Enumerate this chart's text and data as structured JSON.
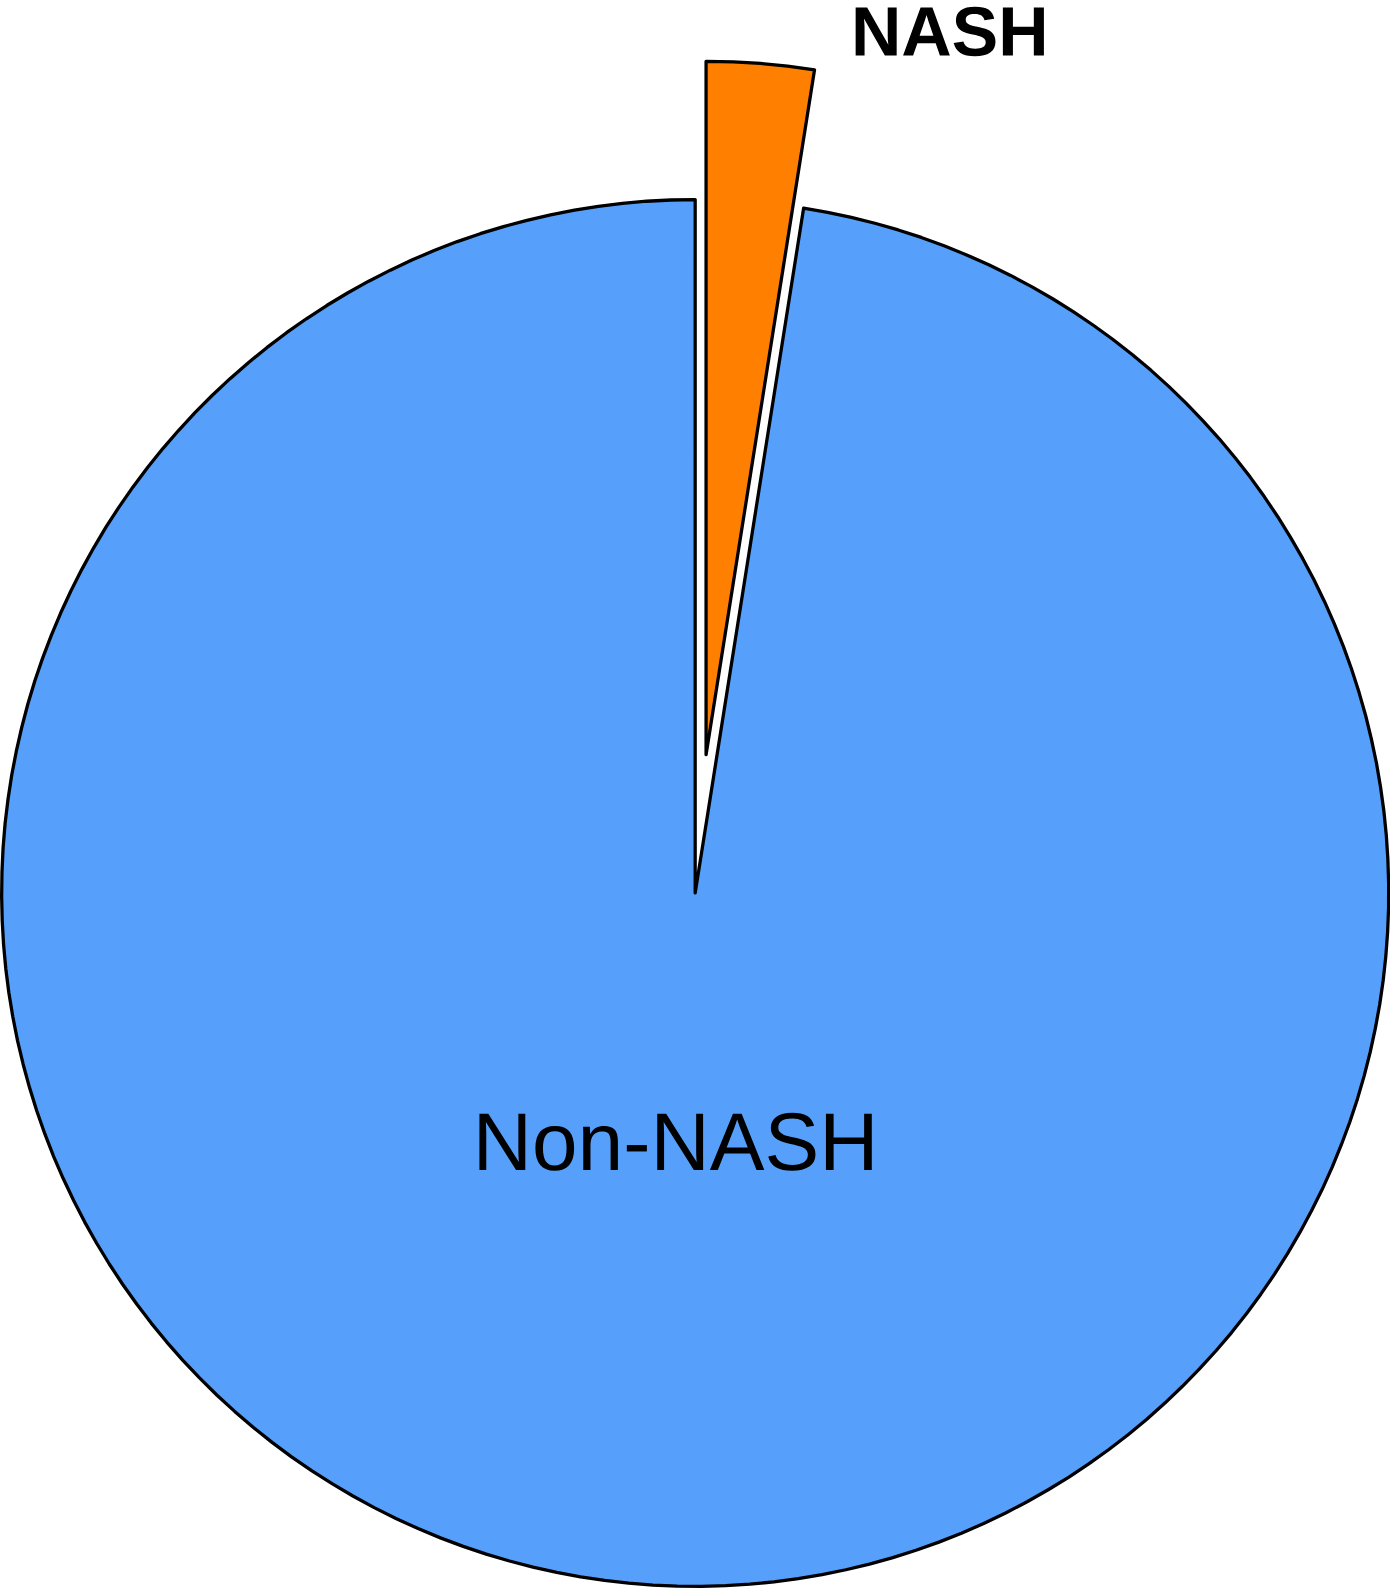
{
  "chart_data": {
    "type": "pie",
    "categories": [
      "NASH",
      "Non-NASH"
    ],
    "values": [
      2.5,
      97.5
    ],
    "colors": [
      "#ff8000",
      "#56a0fb"
    ]
  }
}
